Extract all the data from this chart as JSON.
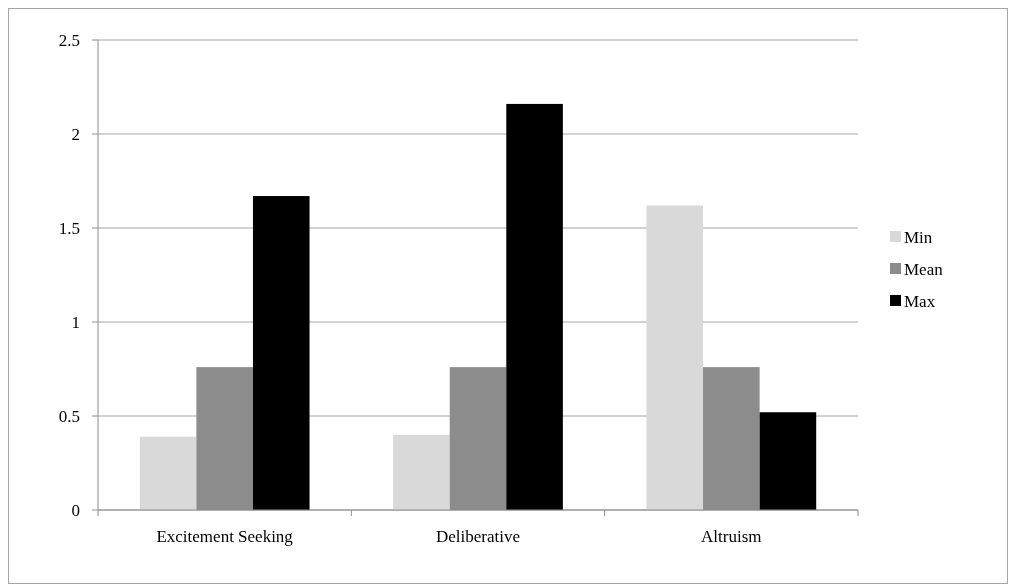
{
  "chart_data": {
    "type": "bar",
    "categories": [
      "Excitement Seeking",
      "Deliberative",
      "Altruism"
    ],
    "series": [
      {
        "name": "Min",
        "color": "#d9d9d9",
        "values": [
          0.39,
          0.4,
          1.62
        ]
      },
      {
        "name": "Mean",
        "color": "#8c8c8c",
        "values": [
          0.76,
          0.76,
          0.76
        ]
      },
      {
        "name": "Max",
        "color": "#000000",
        "values": [
          1.67,
          2.16,
          0.52
        ]
      }
    ],
    "ylim": [
      0,
      2.5
    ],
    "yticks": [
      0,
      {
        "value": 0.5,
        "label": "0.5"
      },
      1,
      {
        "value": 1.5,
        "label": "1.5"
      },
      2,
      {
        "value": 2.5,
        "label": "2.5"
      }
    ],
    "grid": "y",
    "legend": "right"
  }
}
